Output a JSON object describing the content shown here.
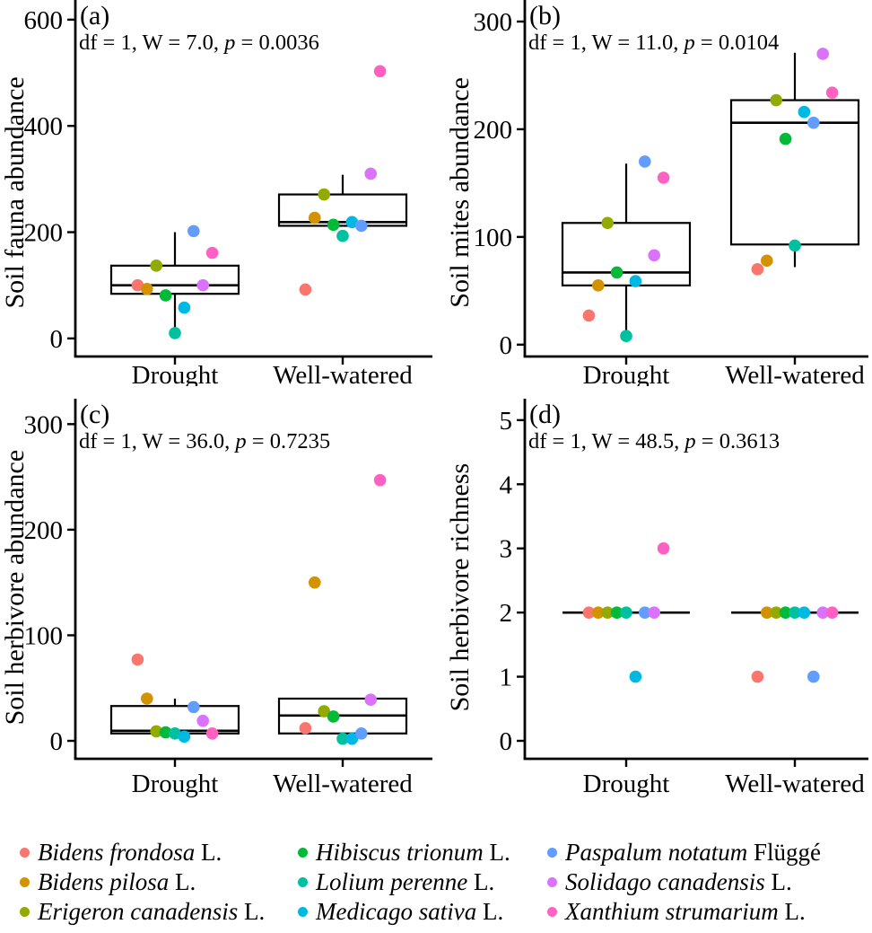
{
  "figure": {
    "treatments": [
      "Drought",
      "Well-watered"
    ],
    "axis_color": "#000000",
    "background_color": "#ffffff",
    "legend_position": "bottom"
  },
  "legend": {
    "species": [
      {
        "label": "Bidens frondosa",
        "authority": "L.",
        "color": "#F8766D"
      },
      {
        "label": "Bidens pilosa",
        "authority": "L.",
        "color": "#D39200"
      },
      {
        "label": "Erigeron canadensis",
        "authority": "L.",
        "color": "#93AA00"
      },
      {
        "label": "Hibiscus trionum",
        "authority": "L.",
        "color": "#00BA38"
      },
      {
        "label": "Lolium perenne",
        "authority": "L.",
        "color": "#00C19F"
      },
      {
        "label": "Medicago sativa",
        "authority": "L.",
        "color": "#00B9E3"
      },
      {
        "label": "Paspalum notatum",
        "authority": "Flüggé",
        "color": "#619CFF"
      },
      {
        "label": "Solidago canadensis",
        "authority": "L.",
        "color": "#DB72FB"
      },
      {
        "label": "Xanthium strumarium",
        "authority": "L.",
        "color": "#FF61C3"
      }
    ]
  },
  "chart_data": [
    {
      "id": "a",
      "type": "boxplot",
      "panel_label": "(a)",
      "stats_text": "df = 1, W = 7.0, p = 0.0036",
      "ylabel": "Soil fauna abundance",
      "xlabel": "",
      "yticks": [
        0,
        200,
        400,
        600
      ],
      "ylim": [
        -34,
        637
      ],
      "grid": false,
      "categories": [
        "Drought",
        "Well-watered"
      ],
      "boxes": [
        {
          "whisker_low": 10,
          "q1": 84,
          "median": 100,
          "q3": 137,
          "whisker_high": 200
        },
        {
          "whisker_low": null,
          "q1": 212,
          "median": 219,
          "q3": 271,
          "whisker_high": 308
        }
      ],
      "points_species_order": [
        [
          100,
          93,
          137,
          81,
          10,
          58,
          202,
          100,
          161
        ],
        [
          92,
          227,
          271,
          214,
          193,
          219,
          212,
          310,
          503
        ]
      ]
    },
    {
      "id": "b",
      "type": "boxplot",
      "panel_label": "(b)",
      "stats_text": "df = 1, W = 11.0, p = 0.0104",
      "ylabel": "Soil mites abundance",
      "xlabel": "",
      "yticks": [
        0,
        100,
        200,
        300
      ],
      "ylim": [
        -11,
        320
      ],
      "grid": false,
      "categories": [
        "Drought",
        "Well-watered"
      ],
      "boxes": [
        {
          "whisker_low": 8,
          "q1": 55,
          "median": 67,
          "q3": 113,
          "whisker_high": 168
        },
        {
          "whisker_low": 72,
          "q1": 93,
          "median": 206,
          "q3": 227,
          "whisker_high": 271
        }
      ],
      "points_species_order": [
        [
          27,
          55,
          113,
          67,
          8,
          59,
          170,
          83,
          155
        ],
        [
          70,
          78,
          227,
          191,
          92,
          216,
          206,
          270,
          234
        ]
      ]
    },
    {
      "id": "c",
      "type": "boxplot",
      "panel_label": "(c)",
      "stats_text": "df = 1, W = 36.0, p = 0.7235",
      "ylabel": "Soil herbivore abundance",
      "xlabel": "",
      "yticks": [
        0,
        100,
        200,
        300
      ],
      "ylim": [
        -17,
        336
      ],
      "grid": false,
      "categories": [
        "Drought",
        "Well-watered"
      ],
      "boxes": [
        {
          "whisker_low": null,
          "q1": 7,
          "median": 9.5,
          "q3": 33,
          "whisker_high": 40
        },
        {
          "whisker_low": null,
          "q1": 7,
          "median": 24,
          "q3": 40,
          "whisker_high": null
        }
      ],
      "points_species_order": [
        [
          77,
          40,
          9,
          8,
          7,
          4,
          32,
          19,
          7
        ],
        [
          12,
          150,
          28,
          23,
          2,
          2,
          7,
          39,
          247
        ]
      ]
    },
    {
      "id": "d",
      "type": "boxplot",
      "panel_label": "(d)",
      "stats_text": "df = 1, W = 48.5, p = 0.3613",
      "ylabel": "Soil herbivore richness",
      "xlabel": "",
      "yticks": [
        0,
        1,
        2,
        3,
        4,
        5
      ],
      "ylim": [
        -0.28,
        5.53
      ],
      "grid": false,
      "categories": [
        "Drought",
        "Well-watered"
      ],
      "boxes": [
        {
          "whisker_low": null,
          "q1": null,
          "median": 2,
          "q3": null,
          "whisker_high": null
        },
        {
          "whisker_low": null,
          "q1": null,
          "median": 2,
          "q3": null,
          "whisker_high": null
        }
      ],
      "points_species_order": [
        [
          2,
          2,
          2,
          2,
          2,
          1,
          2,
          2,
          3
        ],
        [
          1,
          2,
          2,
          2,
          2,
          2,
          1,
          2,
          2
        ]
      ]
    }
  ]
}
